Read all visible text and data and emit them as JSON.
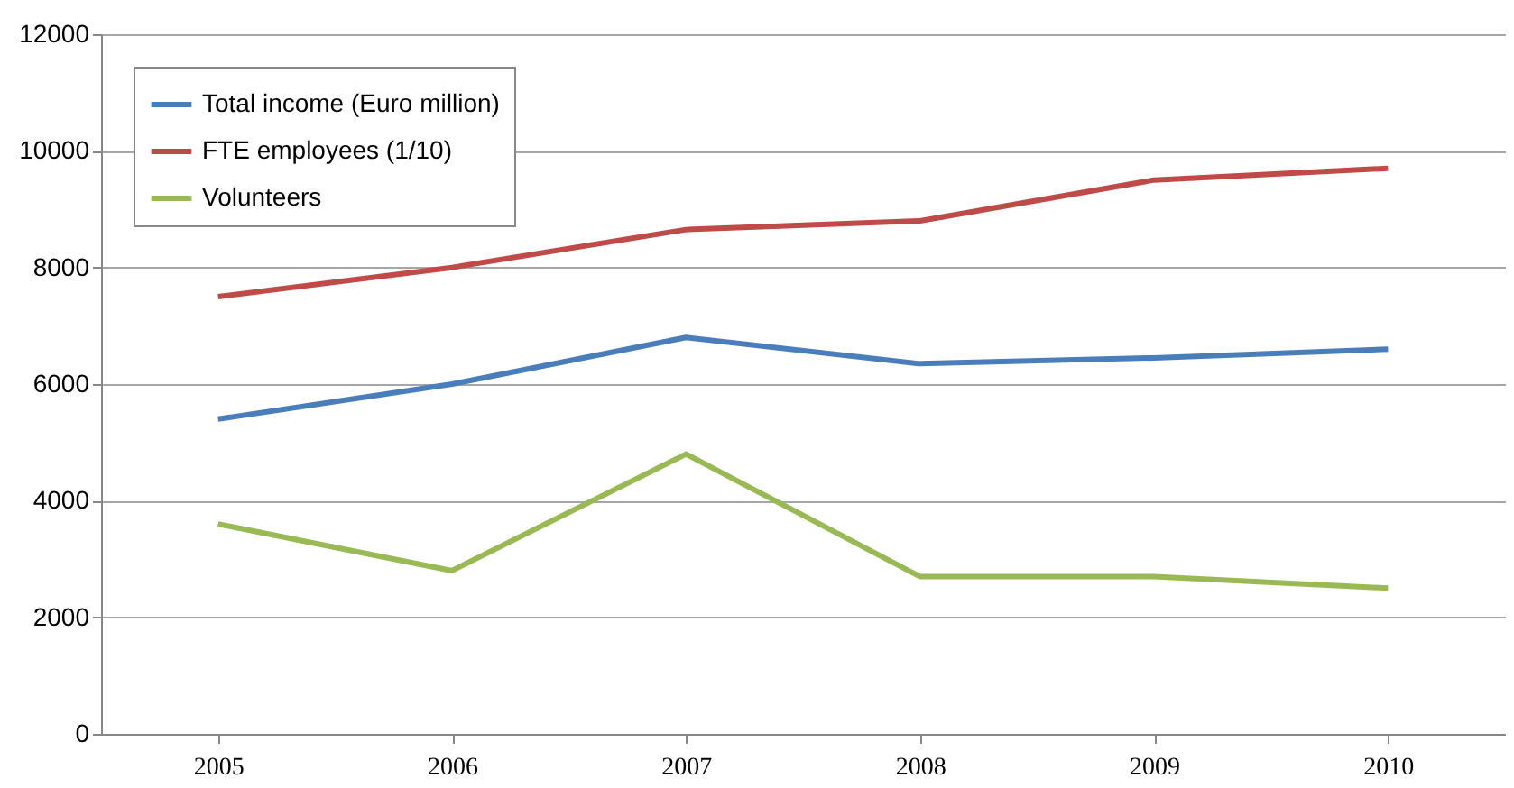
{
  "chart_data": {
    "type": "line",
    "categories": [
      "2005",
      "2006",
      "2007",
      "2008",
      "2009",
      "2010"
    ],
    "series": [
      {
        "name": "Total income (Euro million)",
        "color": "#4a7ebb",
        "values": [
          5400,
          6000,
          6800,
          6350,
          6450,
          6600
        ]
      },
      {
        "name": "FTE employees (1/10)",
        "color": "#be4b48",
        "values": [
          7500,
          8000,
          8650,
          8800,
          9500,
          9700
        ]
      },
      {
        "name": "Volunteers",
        "color": "#98b954",
        "values": [
          3600,
          2800,
          4800,
          2700,
          2700,
          2500
        ]
      }
    ],
    "ylim": [
      0,
      12000
    ],
    "yticks": [
      0,
      2000,
      4000,
      6000,
      8000,
      10000,
      12000
    ],
    "grid": "y",
    "legend": "top left",
    "marker": "none",
    "line_style": "solid"
  }
}
